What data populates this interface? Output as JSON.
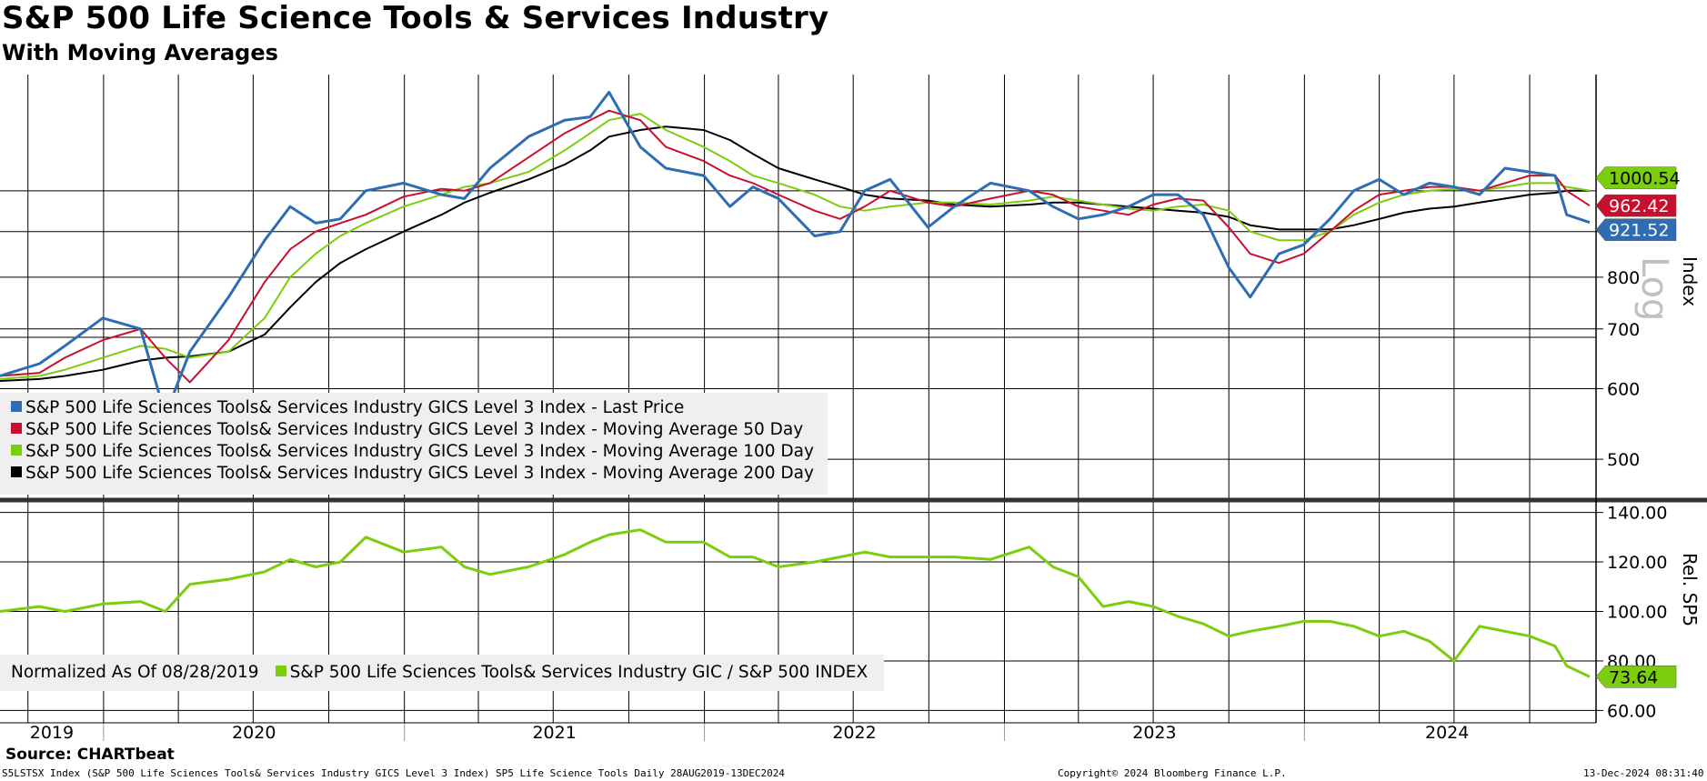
{
  "title": "S&P 500 Life Science Tools & Services Industry",
  "subtitle": "With Moving Averages",
  "source": "Source: CHARTbeat",
  "footer": {
    "left": "S5LSTSX Index (S&P 500 Life Sciences Tools& Services Industry GICS Level 3 Index) SP5 Life Science Tools  Daily 28AUG2019-13DEC2024",
    "center": "Copyright© 2024 Bloomberg Finance L.P.",
    "right": "13-Dec-2024 08:31:40"
  },
  "colors": {
    "last": "#2e6db4",
    "ma50": "#c8102e",
    "ma100": "#7ccd0e",
    "ma200": "#000000",
    "rel": "#7ccd0e"
  },
  "upper_panel": {
    "axis_title": "Index",
    "scale_label": "Log",
    "legend": [
      "S&P 500 Life Sciences Tools& Services Industry GICS Level 3 Index - Last Price",
      "S&P 500 Life Sciences Tools& Services Industry GICS Level 3 Index - Moving Average 50 Day",
      "S&P 500 Life Sciences Tools& Services Industry GICS Level 3 Index - Moving Average 100 Day",
      "S&P 500 Life Sciences Tools& Services Industry GICS Level 3 Index - Moving Average 200 Day"
    ],
    "tags": [
      "1000.54",
      "962.42",
      "921.52"
    ]
  },
  "lower_panel": {
    "axis_title": "Rel. SP5",
    "legend_note": "Normalized As Of 08/28/2019",
    "legend": "S&P 500 Life Sciences Tools& Services Industry GIC / S&P 500 INDEX",
    "tag": "73.64"
  },
  "chart_data": [
    {
      "type": "line",
      "scale": "log",
      "ylim": [
        450,
        1350
      ],
      "yticks": [
        "500",
        "600",
        "700",
        "800",
        "900"
      ],
      "xlabels": [
        "2019",
        "2020",
        "2021",
        "2022",
        "2023",
        "2024"
      ],
      "x": [
        "2019-08-28",
        "2019-10-15",
        "2019-11-15",
        "2019-12-31",
        "2020-02-15",
        "2020-03-16",
        "2020-04-15",
        "2020-06-01",
        "2020-07-15",
        "2020-08-15",
        "2020-09-15",
        "2020-10-15",
        "2020-11-15",
        "2020-12-31",
        "2021-02-15",
        "2021-03-15",
        "2021-04-15",
        "2021-06-01",
        "2021-07-15",
        "2021-08-15",
        "2021-09-07",
        "2021-10-15",
        "2021-11-15",
        "2021-12-31",
        "2022-02-01",
        "2022-03-01",
        "2022-04-01",
        "2022-05-15",
        "2022-06-15",
        "2022-07-15",
        "2022-08-15",
        "2022-09-30",
        "2022-11-01",
        "2022-12-15",
        "2023-01-31",
        "2023-03-01",
        "2023-04-01",
        "2023-05-01",
        "2023-06-01",
        "2023-07-01",
        "2023-07-31",
        "2023-08-31",
        "2023-10-01",
        "2023-10-27",
        "2023-12-01",
        "2023-12-31",
        "2024-02-01",
        "2024-03-01",
        "2024-04-01",
        "2024-05-01",
        "2024-06-01",
        "2024-07-01",
        "2024-08-01",
        "2024-09-01",
        "2024-10-01",
        "2024-11-01",
        "2024-11-15",
        "2024-12-13"
      ],
      "series": [
        {
          "name": "S&P 500 Life Sciences Tools& Services Industry GICS Level 3 Index - Last Price",
          "values": [
            620,
            640,
            670,
            720,
            700,
            560,
            660,
            760,
            880,
            960,
            920,
            930,
            1000,
            1020,
            990,
            980,
            1060,
            1150,
            1200,
            1210,
            1290,
            1120,
            1060,
            1040,
            960,
            1010,
            980,
            890,
            900,
            1000,
            1030,
            910,
            960,
            1020,
            1000,
            960,
            930,
            940,
            960,
            990,
            990,
            940,
            820,
            760,
            850,
            870,
            930,
            1000,
            1030,
            990,
            1020,
            1010,
            990,
            1060,
            1050,
            1040,
            940,
            921.52
          ]
        },
        {
          "name": "S&P 500 Life Sciences Tools& Services Industry GICS Level 3 Index - Moving Average 50 Day",
          "values": [
            620,
            625,
            650,
            680,
            700,
            650,
            610,
            680,
            790,
            860,
            900,
            920,
            940,
            985,
            1005,
            1000,
            1020,
            1090,
            1160,
            1200,
            1230,
            1200,
            1120,
            1080,
            1040,
            1020,
            990,
            950,
            930,
            960,
            1000,
            970,
            960,
            980,
            1000,
            990,
            960,
            950,
            940,
            965,
            980,
            975,
            910,
            850,
            830,
            850,
            900,
            950,
            990,
            1000,
            1010,
            1010,
            1000,
            1020,
            1040,
            1040,
            1000,
            962.42
          ]
        },
        {
          "name": "S&P 500 Life Sciences Tools& Services Industry GICS Level 3 Index - Moving Average 100 Day",
          "values": [
            615,
            620,
            630,
            650,
            670,
            665,
            650,
            660,
            720,
            800,
            850,
            890,
            920,
            960,
            990,
            1010,
            1020,
            1050,
            1110,
            1160,
            1200,
            1220,
            1170,
            1120,
            1080,
            1040,
            1020,
            990,
            960,
            950,
            960,
            970,
            970,
            965,
            975,
            985,
            975,
            965,
            955,
            950,
            960,
            965,
            950,
            900,
            880,
            880,
            900,
            940,
            970,
            990,
            1000,
            1005,
            1000,
            1010,
            1020,
            1020,
            1010,
            1000.54
          ]
        },
        {
          "name": "S&P 500 Life Sciences Tools& Services Industry GICS Level 3 Index - Moving Average 200 Day",
          "values": [
            612,
            615,
            620,
            630,
            645,
            650,
            652,
            660,
            690,
            740,
            790,
            830,
            860,
            900,
            940,
            970,
            995,
            1030,
            1070,
            1110,
            1150,
            1170,
            1180,
            1170,
            1140,
            1100,
            1060,
            1030,
            1010,
            990,
            980,
            975,
            965,
            960,
            965,
            970,
            970,
            965,
            960,
            955,
            950,
            945,
            935,
            915,
            905,
            905,
            905,
            915,
            930,
            945,
            955,
            960,
            970,
            980,
            990,
            995,
            1000,
            1000
          ]
        }
      ]
    },
    {
      "type": "line",
      "ylim": [
        55,
        145
      ],
      "yticks": [
        "60.00",
        "80.00",
        "100.00",
        "120.00",
        "140.00"
      ],
      "x": [
        "2019-08-28",
        "2019-10-15",
        "2019-11-15",
        "2019-12-31",
        "2020-02-15",
        "2020-03-16",
        "2020-04-15",
        "2020-06-01",
        "2020-07-15",
        "2020-08-15",
        "2020-09-15",
        "2020-10-15",
        "2020-11-15",
        "2020-12-31",
        "2021-02-15",
        "2021-03-15",
        "2021-04-15",
        "2021-06-01",
        "2021-07-15",
        "2021-08-15",
        "2021-09-07",
        "2021-10-15",
        "2021-11-15",
        "2021-12-31",
        "2022-02-01",
        "2022-03-01",
        "2022-04-01",
        "2022-05-15",
        "2022-06-15",
        "2022-07-15",
        "2022-08-15",
        "2022-09-30",
        "2022-11-01",
        "2022-12-15",
        "2023-01-31",
        "2023-03-01",
        "2023-04-01",
        "2023-05-01",
        "2023-06-01",
        "2023-07-01",
        "2023-07-31",
        "2023-08-31",
        "2023-10-01",
        "2023-10-27",
        "2023-12-01",
        "2023-12-31",
        "2024-02-01",
        "2024-03-01",
        "2024-04-01",
        "2024-05-01",
        "2024-06-01",
        "2024-07-01",
        "2024-08-01",
        "2024-09-01",
        "2024-10-01",
        "2024-11-01",
        "2024-11-15",
        "2024-12-13"
      ],
      "series": [
        {
          "name": "S&P 500 Life Sciences Tools& Services Industry GIC / S&P 500 INDEX",
          "values": [
            100,
            102,
            100,
            103,
            104,
            100,
            111,
            113,
            116,
            121,
            118,
            120,
            130,
            124,
            126,
            118,
            115,
            118,
            123,
            128,
            131,
            133,
            128,
            128,
            122,
            122,
            118,
            120,
            122,
            124,
            122,
            122,
            122,
            121,
            126,
            118,
            114,
            102,
            104,
            102,
            98,
            95,
            90,
            92,
            94,
            96,
            96,
            94,
            90,
            92,
            88,
            80,
            94,
            92,
            90,
            86,
            78,
            73.64
          ]
        }
      ]
    }
  ]
}
